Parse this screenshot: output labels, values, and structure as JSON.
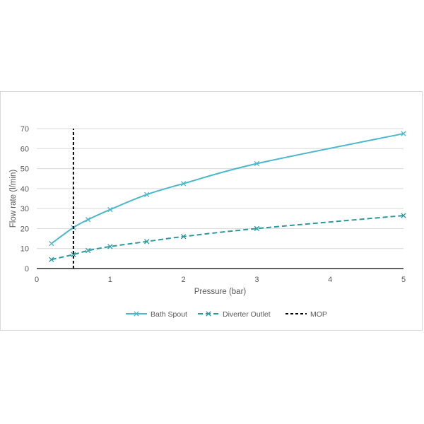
{
  "chart_data": {
    "type": "line",
    "title": "",
    "xlabel": "Pressure (bar)",
    "ylabel": "Flow rate (l/min)",
    "xlim": [
      0,
      5
    ],
    "ylim": [
      0,
      70
    ],
    "x_ticks": [
      0,
      1,
      2,
      3,
      4,
      5
    ],
    "y_ticks": [
      0,
      10,
      20,
      30,
      40,
      50,
      60,
      70
    ],
    "grid": "horizontal",
    "legend_position": "bottom",
    "series": [
      {
        "name": "Bath Spout",
        "color": "#4bb8cc",
        "line_style": "solid",
        "marker": "x",
        "x": [
          0.2,
          0.5,
          0.7,
          1,
          1.5,
          2,
          3,
          5
        ],
        "y": [
          12.5,
          20.5,
          24.5,
          29.5,
          37,
          42.5,
          52.5,
          67.5
        ]
      },
      {
        "name": "Diverter Outlet",
        "color": "#2a9a9e",
        "line_style": "dashed",
        "marker": "x",
        "x": [
          0.2,
          0.5,
          0.7,
          1,
          1.5,
          2,
          3,
          5
        ],
        "y": [
          4.5,
          7,
          9,
          11,
          13.5,
          16,
          20,
          26.5
        ]
      },
      {
        "name": "MOP",
        "color": "#000000",
        "line_style": "dashed",
        "marker": "none",
        "x": [
          0.5,
          0.5
        ],
        "y": [
          0,
          70
        ]
      }
    ]
  }
}
